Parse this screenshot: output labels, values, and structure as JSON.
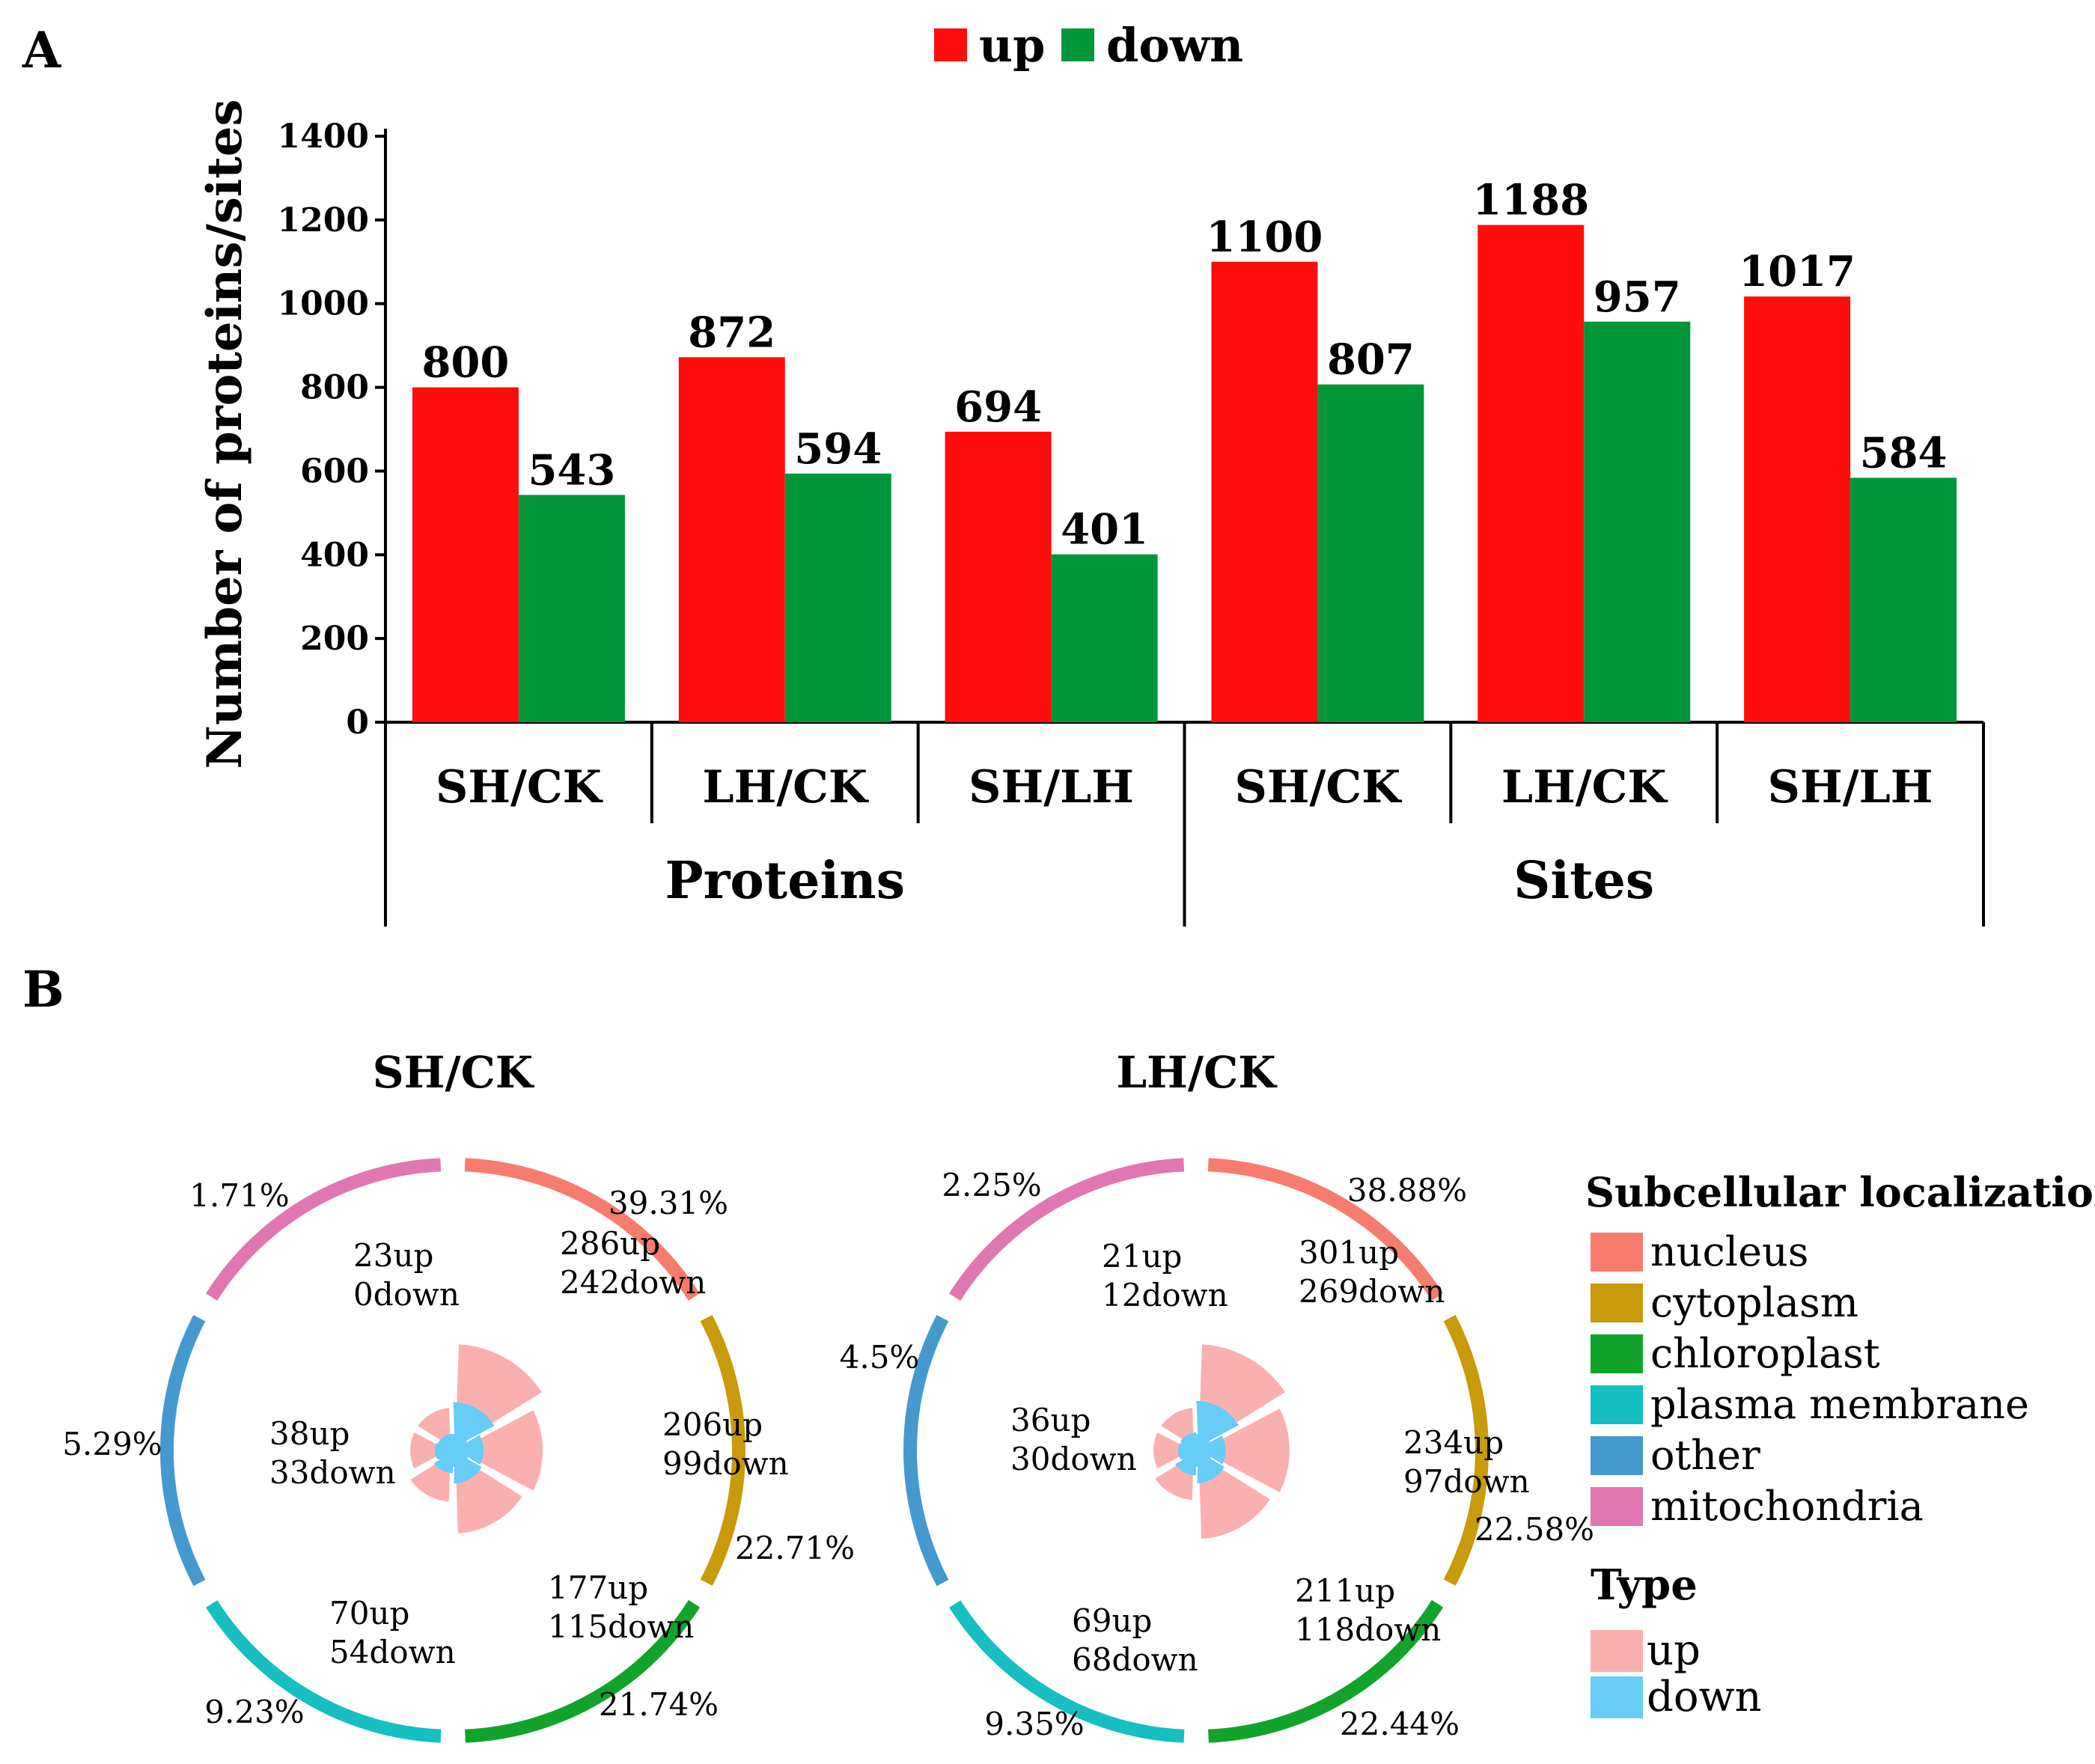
{
  "panel_a_label": "A",
  "panel_b_label": "B",
  "chart_data": [
    {
      "type": "bar",
      "title": "",
      "ylabel": "Number of proteins/sites",
      "xlabel": "",
      "ylim": [
        0,
        1400
      ],
      "yticks": [
        "0",
        "200",
        "400",
        "600",
        "800",
        "1000",
        "1200",
        "1400"
      ],
      "ytick_values": [
        0,
        200,
        400,
        600,
        800,
        1000,
        1200,
        1400
      ],
      "legend_position": "top",
      "categories": [
        "SH/CK",
        "LH/CK",
        "SH/LH",
        "SH/CK",
        "LH/CK",
        "SH/LH"
      ],
      "groups": [
        {
          "label": "Proteins",
          "span": [
            0,
            2
          ]
        },
        {
          "label": "Sites",
          "span": [
            3,
            5
          ]
        }
      ],
      "series": [
        {
          "name": "up",
          "color": "#ff0d0d",
          "values": [
            800,
            872,
            694,
            1100,
            1188,
            1017
          ],
          "labels": [
            "800",
            "872",
            "694",
            "1100",
            "1188",
            "1017"
          ]
        },
        {
          "name": "down",
          "color": "#009639",
          "values": [
            543,
            594,
            401,
            807,
            957,
            584
          ],
          "labels": [
            "543",
            "594",
            "401",
            "807",
            "957",
            "584"
          ]
        }
      ]
    },
    {
      "type": "pie",
      "title": "SH/CK",
      "segments": [
        {
          "name": "nucleus",
          "percent_label": "39.31%",
          "up_label": "286up",
          "down_label": "242down",
          "up": 286,
          "down": 242
        },
        {
          "name": "cytoplasm",
          "percent_label": "22.71%",
          "up_label": "206up",
          "down_label": "99down",
          "up": 206,
          "down": 99
        },
        {
          "name": "chloroplast",
          "percent_label": "21.74%",
          "up_label": "177up",
          "down_label": "115down",
          "up": 177,
          "down": 115
        },
        {
          "name": "plasma membrane",
          "percent_label": "9.23%",
          "up_label": "70up",
          "down_label": "54down",
          "up": 70,
          "down": 54
        },
        {
          "name": "other",
          "percent_label": "5.29%",
          "up_label": "38up",
          "down_label": "33down",
          "up": 38,
          "down": 33
        },
        {
          "name": "mitochondria",
          "percent_label": "1.71%",
          "up_label": "23up",
          "down_label": "0down",
          "up": 23,
          "down": 0
        }
      ]
    },
    {
      "type": "pie",
      "title": "LH/CK",
      "segments": [
        {
          "name": "nucleus",
          "percent_label": "38.88%",
          "up_label": "301up",
          "down_label": "269down",
          "up": 301,
          "down": 269
        },
        {
          "name": "cytoplasm",
          "percent_label": "22.58%",
          "up_label": "234up",
          "down_label": "97down",
          "up": 234,
          "down": 97
        },
        {
          "name": "chloroplast",
          "percent_label": "22.44%",
          "up_label": "211up",
          "down_label": "118down",
          "up": 211,
          "down": 118
        },
        {
          "name": "plasma membrane",
          "percent_label": "9.35%",
          "up_label": "69up",
          "down_label": "68down",
          "up": 69,
          "down": 68
        },
        {
          "name": "other",
          "percent_label": "4.5%",
          "up_label": "36up",
          "down_label": "30down",
          "up": 36,
          "down": 30
        },
        {
          "name": "mitochondria",
          "percent_label": "2.25%",
          "up_label": "21up",
          "down_label": "12down",
          "up": 21,
          "down": 12
        }
      ]
    }
  ],
  "legend_b": {
    "localization_title": "Subcellular localization",
    "localization_items": [
      {
        "name": "nucleus",
        "color": "#f87c6d"
      },
      {
        "name": "cytoplasm",
        "color": "#c99a0a"
      },
      {
        "name": "chloroplast",
        "color": "#12a42a"
      },
      {
        "name": "plasma membrane",
        "color": "#15bfc2"
      },
      {
        "name": "other",
        "color": "#4699cf"
      },
      {
        "name": "mitochondria",
        "color": "#e177b0"
      }
    ],
    "type_title": "Type",
    "type_items": [
      {
        "name": "up",
        "color": "#fbb0b0"
      },
      {
        "name": "down",
        "color": "#66ccf8"
      }
    ]
  }
}
